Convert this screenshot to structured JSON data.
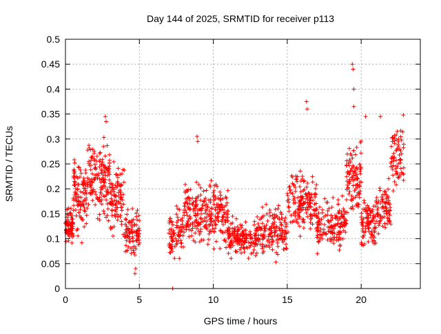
{
  "chart_data": {
    "type": "scatter",
    "title": "Day 144 of 2025, SRMTID for receiver p113",
    "xlabel": "GPS time / hours",
    "ylabel": "SRMTID / TECUs",
    "xlim": [
      0,
      24
    ],
    "ylim": [
      0,
      0.5
    ],
    "x_ticks": [
      0,
      5,
      10,
      15,
      20
    ],
    "x_tick_labels": [
      "0",
      "5",
      "10",
      "15",
      "20"
    ],
    "y_ticks": [
      0,
      0.05,
      0.1,
      0.15,
      0.2,
      0.25,
      0.3,
      0.35,
      0.4,
      0.45,
      0.5
    ],
    "y_tick_labels": [
      "0",
      "0.05",
      "0.1",
      "0.15",
      "0.2",
      "0.25",
      "0.3",
      "0.35",
      "0.4",
      "0.45",
      "0.5"
    ],
    "grid": true,
    "marker": "+",
    "series_color": "#ff0000",
    "data_points_note": "dense scatter, approximated by hourly segments",
    "segments": [
      {
        "x": [
          0.0,
          0.5
        ],
        "y_center": 0.125,
        "spread": 0.03,
        "count": 70
      },
      {
        "x": [
          0.5,
          1.5
        ],
        "y_center": 0.19,
        "spread": 0.06,
        "count": 110
      },
      {
        "x": [
          1.5,
          3.0
        ],
        "y_center": 0.22,
        "spread": 0.06,
        "count": 150
      },
      {
        "x": [
          3.0,
          4.0
        ],
        "y_center": 0.18,
        "spread": 0.06,
        "count": 90
      },
      {
        "x": [
          4.0,
          5.0
        ],
        "y_center": 0.11,
        "spread": 0.04,
        "count": 90
      },
      {
        "x": [
          7.0,
          8.0
        ],
        "y_center": 0.11,
        "spread": 0.04,
        "count": 80
      },
      {
        "x": [
          8.0,
          10.0
        ],
        "y_center": 0.15,
        "spread": 0.05,
        "count": 170
      },
      {
        "x": [
          10.0,
          11.0
        ],
        "y_center": 0.15,
        "spread": 0.05,
        "count": 90
      },
      {
        "x": [
          11.0,
          13.0
        ],
        "y_center": 0.1,
        "spread": 0.03,
        "count": 160
      },
      {
        "x": [
          13.0,
          15.0
        ],
        "y_center": 0.12,
        "spread": 0.04,
        "count": 150
      },
      {
        "x": [
          15.0,
          17.0
        ],
        "y_center": 0.17,
        "spread": 0.05,
        "count": 160
      },
      {
        "x": [
          17.0,
          19.0
        ],
        "y_center": 0.13,
        "spread": 0.04,
        "count": 150
      },
      {
        "x": [
          19.0,
          20.0
        ],
        "y_center": 0.22,
        "spread": 0.06,
        "count": 100
      },
      {
        "x": [
          20.0,
          21.0
        ],
        "y_center": 0.13,
        "spread": 0.04,
        "count": 90
      },
      {
        "x": [
          21.0,
          22.0
        ],
        "y_center": 0.16,
        "spread": 0.04,
        "count": 80
      },
      {
        "x": [
          22.0,
          22.9
        ],
        "y_center": 0.27,
        "spread": 0.05,
        "count": 70
      }
    ],
    "highlight_points": [
      {
        "x": 2.7,
        "y": 0.345
      },
      {
        "x": 2.75,
        "y": 0.335
      },
      {
        "x": 16.3,
        "y": 0.375
      },
      {
        "x": 16.35,
        "y": 0.36
      },
      {
        "x": 19.4,
        "y": 0.45
      },
      {
        "x": 19.45,
        "y": 0.44
      },
      {
        "x": 19.5,
        "y": 0.4
      },
      {
        "x": 19.5,
        "y": 0.365
      },
      {
        "x": 22.85,
        "y": 0.348
      },
      {
        "x": 4.7,
        "y": 0.03
      },
      {
        "x": 4.75,
        "y": 0.04
      },
      {
        "x": 8.9,
        "y": 0.305
      },
      {
        "x": 8.95,
        "y": 0.295
      },
      {
        "x": 7.25,
        "y": 0.0
      },
      {
        "x": 20.3,
        "y": 0.345
      },
      {
        "x": 21.3,
        "y": 0.345
      }
    ]
  }
}
